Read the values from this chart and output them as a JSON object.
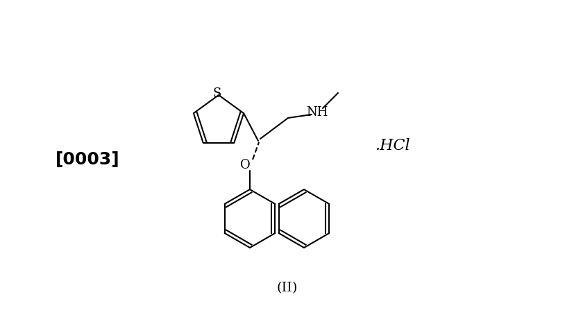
{
  "title": "(II)",
  "label_0003": "[0003]",
  "label_hcl": ".HCl",
  "label_nh": "NH",
  "label_s": "S",
  "label_o": "O",
  "bg_color": "#ffffff",
  "line_color": "#000000",
  "font_size_label": 18,
  "font_size_title": 14,
  "fig_width": 8.28,
  "fig_height": 4.54,
  "dpi": 100
}
